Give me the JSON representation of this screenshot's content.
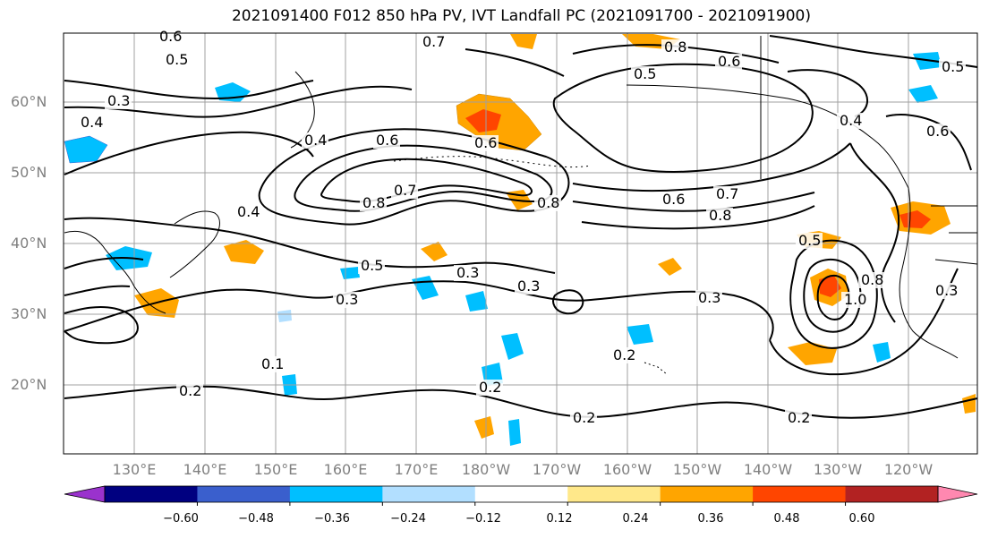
{
  "title": "2021091400 F012 850 hPa PV, IVT Landfall PC (2021091700 - 2021091900)",
  "map": {
    "lat_labels": [
      "60°N",
      "50°N",
      "40°N",
      "30°N",
      "20°N"
    ],
    "lon_labels": [
      "130°E",
      "140°E",
      "150°E",
      "160°E",
      "170°E",
      "180°W",
      "170°W",
      "160°W",
      "150°W",
      "140°W",
      "130°W",
      "120°W"
    ],
    "contour_labels": [
      "0.6",
      "0.5",
      "0.3",
      "0.4",
      "0.7",
      "0.8",
      "0.6",
      "0.5",
      "0.4",
      "0.6",
      "0.4",
      "0.6",
      "0.8",
      "0.7",
      "0.8",
      "0.6",
      "0.7",
      "0.8",
      "0.4",
      "0.5",
      "0.3",
      "0.3",
      "0.3",
      "0.5",
      "1.0",
      "0.8",
      "0.3",
      "0.2",
      "0.2",
      "0.2",
      "0.2",
      "0.1",
      "0.2",
      "0.3",
      "0.5",
      "0.6"
    ]
  },
  "colorbar": {
    "ticks": [
      "−0.60",
      "−0.48",
      "−0.36",
      "−0.24",
      "−0.12",
      "0.12",
      "0.24",
      "0.36",
      "0.48",
      "0.60"
    ],
    "colors": [
      "#9a32cd",
      "#000080",
      "#3a5fcd",
      "#00bfff",
      "#b2dfff",
      "#ffffff",
      "#ffe88a",
      "#ffa500",
      "#ff4500",
      "#b22222",
      "#ff88b0"
    ]
  }
}
